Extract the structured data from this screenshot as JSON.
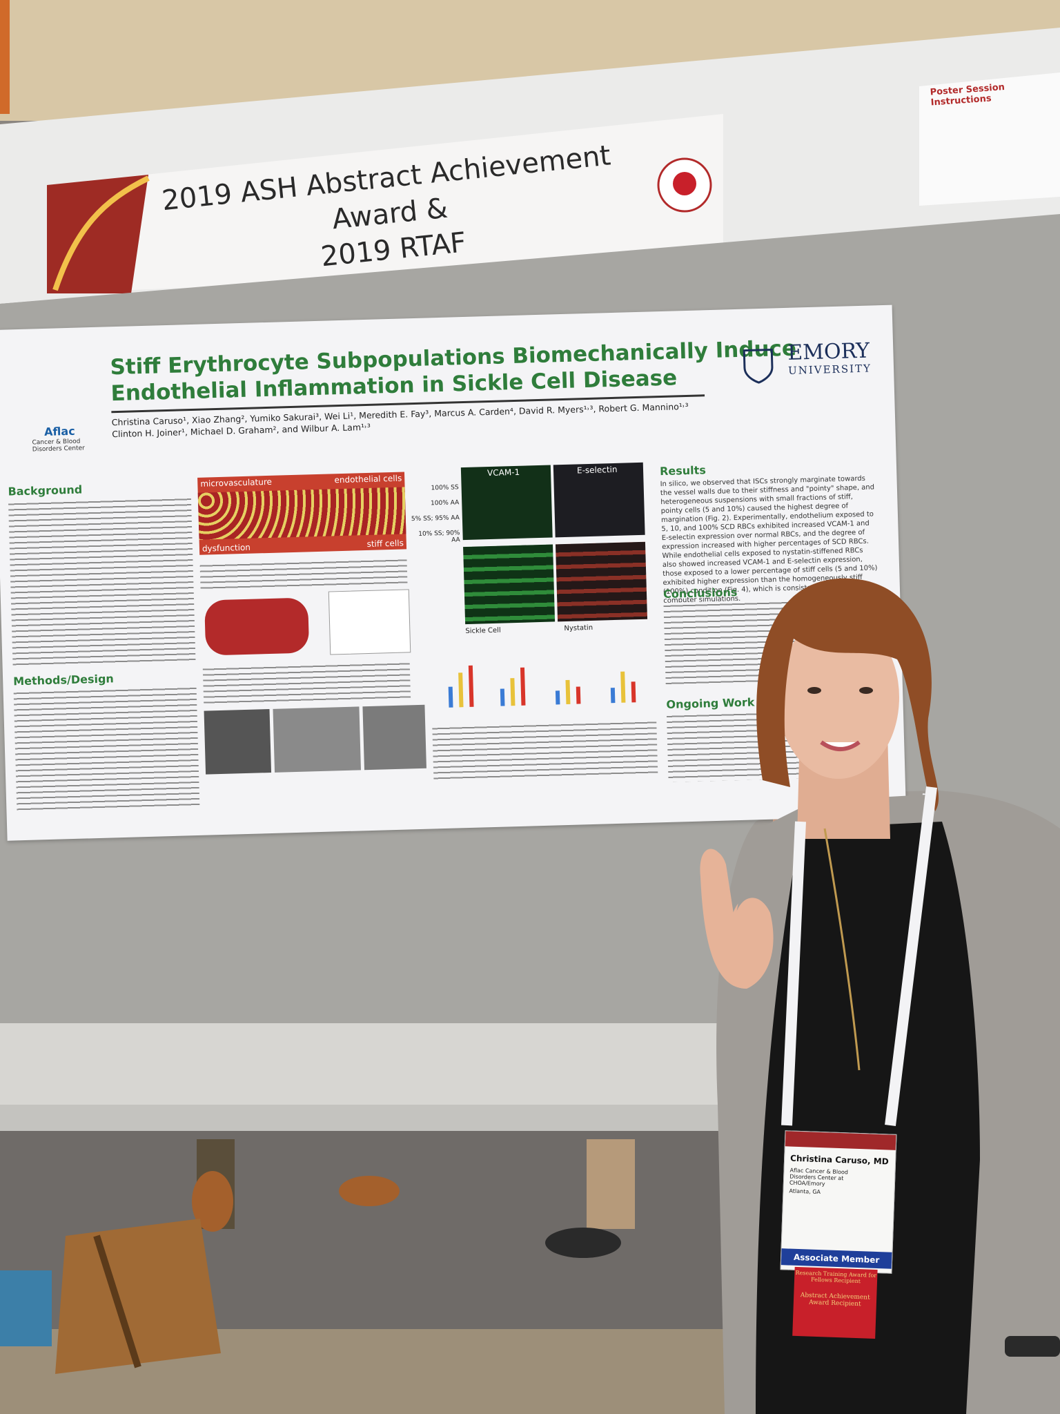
{
  "banner": {
    "line1": "2019 ASH Abstract Achievement Award &",
    "line2": "2019 RTAF"
  },
  "instructions": {
    "title": "Poster Session Instructions"
  },
  "poster": {
    "title_lines": [
      "Stiff Erythrocyte Subpopulations Biomechanically Induce",
      "Endothelial Inflammation in Sickle Cell Disease"
    ],
    "authors": [
      "Christina Caruso¹, Xiao Zhang², Yumiko Sakurai³, Wei Li¹, Meredith E. Fay³, Marcus A. Carden⁴, David R. Myers¹˒³, Robert G. Mannino¹˒³",
      "Clinton H. Joiner¹, Michael D. Graham², and Wilbur A. Lam¹˒³"
    ],
    "logos": {
      "aflac": "Aflac",
      "aflac_sub": "Cancer & Blood Disorders Center",
      "emory": "EMORY",
      "emory_sub": "UNIVERSITY"
    },
    "sections": {
      "background": "Background",
      "methods": "Methods/Design",
      "results": "Results",
      "results_text": "In silico, we observed that ISCs strongly marginate towards the vessel walls due to their stiffness and \"pointy\" shape, and heterogeneous suspensions with small fractions of stiff, pointy cells (5 and 10%) caused the highest degree of margination (Fig. 2). Experimentally, endothelium exposed to 5, 10, and 100% SCD RBCs exhibited increased VCAM-1 and E-selectin expression over normal RBCs, and the degree of expression increased with higher percentages of SCD RBCs. While endothelial cells exposed to nystatin-stiffened RBCs also showed increased VCAM-1 and E-selectin expression, those exposed to a lower percentage of stiff cells (5 and 10%) exhibited higher expression than the homogeneously stiff (100%) condition (Fig. 4), which is consistent with our computer simulations.",
      "conclusions": "Conclusions",
      "ongoing": "Ongoing Work"
    },
    "figure": {
      "microvasculature": "microvasculature",
      "endothelial": "endothelial cells",
      "dysfunction": "dysfunction",
      "stiff": "stiff cells",
      "vcam": "VCAM-1",
      "eselectin": "E-selectin",
      "rows": [
        "100% SS",
        "100% AA",
        "5% SS; 95% AA",
        "10% SS; 90% AA"
      ],
      "sickle": "Sickle Cell",
      "nystatin": "Nystatin"
    }
  },
  "badge": {
    "name": "Christina Caruso, MD",
    "affiliation": "Aflac Cancer & Blood Disorders Center at CHOA/Emory",
    "city": "Atlanta, GA",
    "member": "Associate Member",
    "ribbon1": "Research Training Award for Fellows Recipient",
    "ribbon2": "Abstract Achievement Award Recipient"
  }
}
